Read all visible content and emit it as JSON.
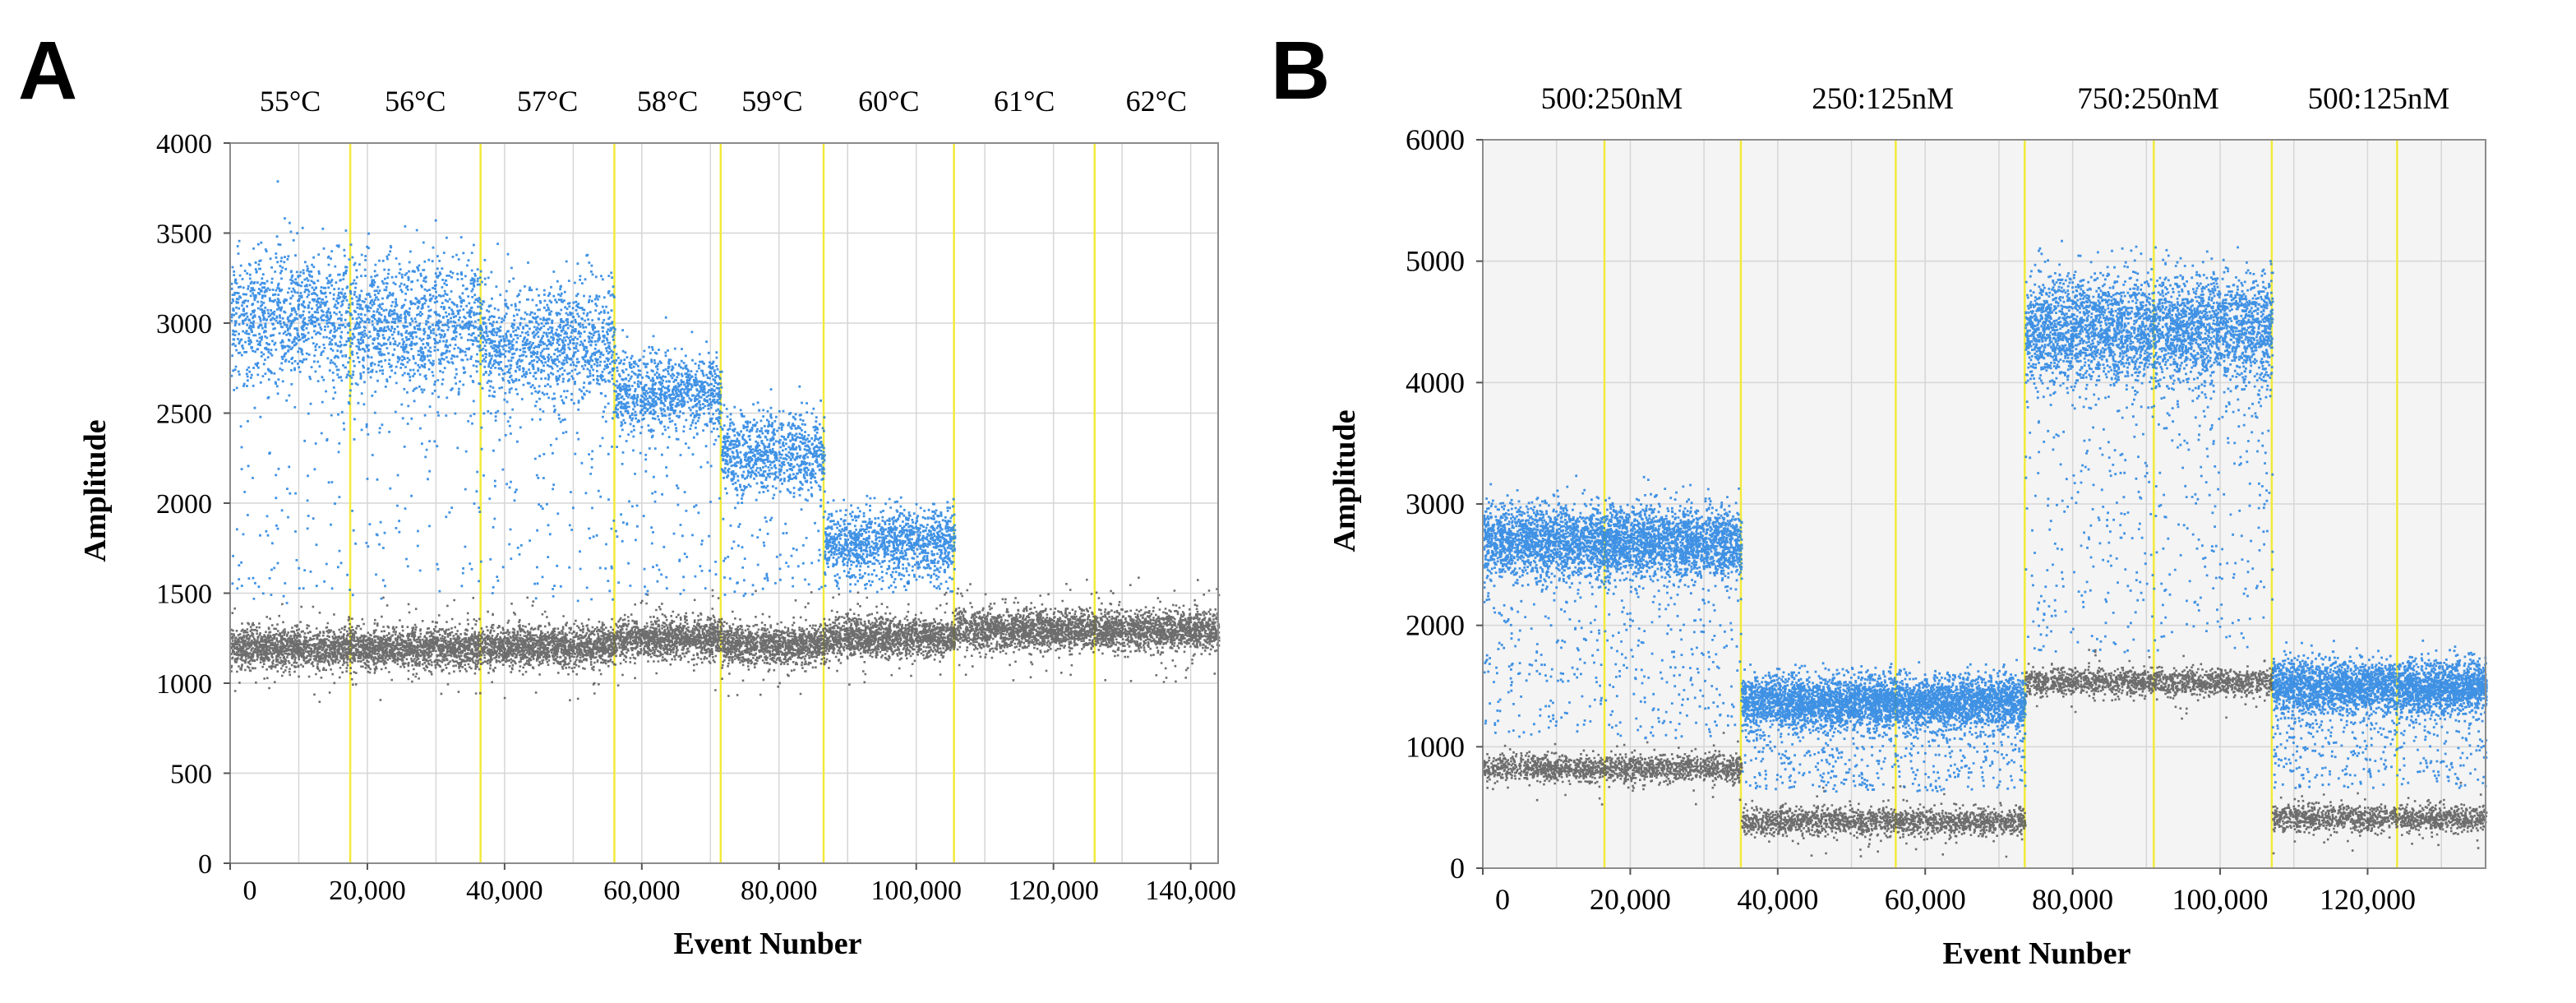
{
  "panels": [
    {
      "letter": "A",
      "chart_data": {
        "type": "scatter",
        "title": "",
        "xlabel": "Event Nunber",
        "ylabel": "Amplitude",
        "xlim": [
          0,
          144000
        ],
        "ylim": [
          0,
          4000
        ],
        "xticks": [
          0,
          20000,
          40000,
          60000,
          80000,
          100000,
          120000,
          140000
        ],
        "xtick_labels": [
          "0",
          "20,000",
          "40,000",
          "60,000",
          "80,000",
          "100,000",
          "120,000",
          "140,000"
        ],
        "yticks": [
          0,
          500,
          1000,
          1500,
          2000,
          2500,
          3000,
          3500,
          4000
        ],
        "ytick_labels": [
          "0",
          "500",
          "1000",
          "1500",
          "2000",
          "2500",
          "3000",
          "3500",
          "4000"
        ],
        "grid": true,
        "colors": {
          "positive": "#1e7fe0",
          "negative": "#555555",
          "divider": "#f2ea3a",
          "grid": "#d6d6d6"
        },
        "groups": [
          {
            "label": "55°C",
            "x_start": 0,
            "x_end": 17500,
            "positive_mean": 3050,
            "positive_spread": 190,
            "negative_mean": 1200,
            "has_positive": true
          },
          {
            "label": "56°C",
            "x_start": 17500,
            "x_end": 36500,
            "positive_mean": 3000,
            "positive_spread": 190,
            "negative_mean": 1200,
            "has_positive": true
          },
          {
            "label": "57°C",
            "x_start": 36500,
            "x_end": 56000,
            "positive_mean": 2900,
            "positive_spread": 170,
            "negative_mean": 1210,
            "has_positive": true
          },
          {
            "label": "58°C",
            "x_start": 56000,
            "x_end": 71500,
            "positive_mean": 2620,
            "positive_spread": 110,
            "negative_mean": 1250,
            "has_positive": true
          },
          {
            "label": "59°C",
            "x_start": 71500,
            "x_end": 86500,
            "positive_mean": 2290,
            "positive_spread": 110,
            "negative_mean": 1220,
            "has_positive": true
          },
          {
            "label": "60°C",
            "x_start": 86500,
            "x_end": 105500,
            "positive_mean": 1800,
            "positive_spread": 85,
            "negative_mean": 1260,
            "has_positive": true
          },
          {
            "label": "61°C",
            "x_start": 105500,
            "x_end": 126000,
            "positive_mean": 0,
            "positive_spread": 0,
            "negative_mean": 1300,
            "has_positive": false
          },
          {
            "label": "62°C",
            "x_start": 126000,
            "x_end": 144000,
            "positive_mean": 0,
            "positive_spread": 0,
            "negative_mean": 1300,
            "has_positive": false
          }
        ],
        "dividers": [
          17500,
          36500,
          56000,
          71500,
          86500,
          105500,
          126000
        ]
      }
    },
    {
      "letter": "B",
      "chart_data": {
        "type": "scatter",
        "title": "",
        "xlabel": "Event Nunber",
        "ylabel": "Amplitude",
        "xlim": [
          0,
          136000
        ],
        "ylim": [
          0,
          6000
        ],
        "xticks": [
          0,
          20000,
          40000,
          60000,
          80000,
          100000,
          120000
        ],
        "xtick_labels": [
          "0",
          "20,000",
          "40,000",
          "60,000",
          "80,000",
          "100,000",
          "120,000"
        ],
        "yticks": [
          0,
          1000,
          2000,
          3000,
          4000,
          5000,
          6000
        ],
        "ytick_labels": [
          "0",
          "1000",
          "2000",
          "3000",
          "4000",
          "5000",
          "6000"
        ],
        "grid": true,
        "colors": {
          "positive": "#1e7fe0",
          "negative": "#555555",
          "divider": "#f2ea3a",
          "grid": "#d6d6d6"
        },
        "groups": [
          {
            "label": "500:250nM",
            "x_start": 0,
            "x_end": 35000,
            "positive_mean": 2700,
            "positive_spread": 150,
            "negative_mean": 830,
            "has_positive": true
          },
          {
            "label": "250:125nM",
            "x_start": 35000,
            "x_end": 73500,
            "positive_mean": 1380,
            "positive_spread": 110,
            "negative_mean": 390,
            "has_positive": true
          },
          {
            "label": "750:250nM",
            "x_start": 73500,
            "x_end": 107000,
            "positive_mean": 4450,
            "positive_spread": 230,
            "negative_mean": 1540,
            "has_positive": true
          },
          {
            "label": "500:125nM",
            "x_start": 107000,
            "x_end": 136000,
            "positive_mean": 1500,
            "positive_spread": 110,
            "negative_mean": 420,
            "has_positive": true
          }
        ],
        "dividers": [
          16500,
          35000,
          56000,
          73500,
          91000,
          107000,
          124000
        ]
      }
    }
  ]
}
